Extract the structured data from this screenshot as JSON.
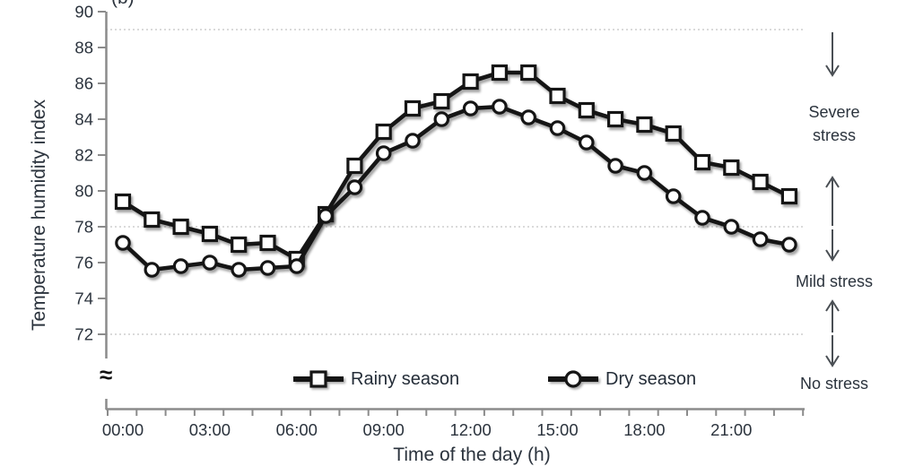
{
  "figure_label": "(b)",
  "axes": {
    "y_title": "Temperature humidity index",
    "x_title": "Time of the day (h)",
    "y_ticks": [
      90,
      88,
      86,
      84,
      82,
      80,
      78,
      76,
      74,
      72
    ],
    "x_tick_labels": [
      "00:00",
      "03:00",
      "06:00",
      "09:00",
      "12:00",
      "15:00",
      "18:00",
      "21:00"
    ],
    "axis_break_symbol": "≈"
  },
  "chart_data": {
    "type": "line",
    "title": "",
    "xlabel": "Time of the day (h)",
    "ylabel": "Temperature humidity index",
    "x": [
      "00:00",
      "01:00",
      "02:00",
      "03:00",
      "04:00",
      "05:00",
      "06:00",
      "07:00",
      "08:00",
      "09:00",
      "10:00",
      "11:00",
      "12:00",
      "13:00",
      "14:00",
      "15:00",
      "16:00",
      "17:00",
      "18:00",
      "19:00",
      "20:00",
      "21:00",
      "22:00",
      "23:00"
    ],
    "series": [
      {
        "name": "Rainy season",
        "marker": "square",
        "values": [
          79.4,
          78.4,
          78.0,
          77.6,
          77.0,
          77.1,
          76.2,
          78.7,
          81.4,
          83.3,
          84.6,
          85.0,
          86.1,
          86.6,
          86.6,
          85.3,
          84.5,
          84.0,
          83.7,
          83.2,
          81.6,
          81.3,
          80.5,
          79.7
        ]
      },
      {
        "name": "Dry season",
        "marker": "circle",
        "values": [
          77.1,
          75.6,
          75.8,
          76.0,
          75.6,
          75.7,
          75.8,
          78.6,
          80.2,
          82.1,
          82.8,
          84.0,
          84.6,
          84.7,
          84.1,
          83.5,
          82.7,
          81.4,
          81.0,
          79.7,
          78.5,
          78.0,
          77.3,
          77.0
        ]
      }
    ],
    "ylim": [
      72,
      90
    ],
    "y_axis_break_below": 72,
    "gridlines_y": [
      89,
      78,
      72
    ],
    "grid_style": "dotted horizontal",
    "legend_position": "inside-bottom"
  },
  "legend": {
    "items": [
      {
        "label": "Rainy season",
        "marker": "square"
      },
      {
        "label": "Dry season",
        "marker": "circle"
      }
    ]
  },
  "annotations": {
    "stress_zones": [
      {
        "label": "Severe stress",
        "upper_boundary": 89
      },
      {
        "label": "Mild stress",
        "upper_boundary": 78
      },
      {
        "label": "No stress",
        "upper_boundary": 72
      }
    ],
    "arrows": [
      {
        "direction": "down",
        "near_value": 89
      },
      {
        "direction": "up",
        "near_value": 78
      },
      {
        "direction": "down",
        "near_value": 78
      },
      {
        "direction": "up",
        "near_value": 72
      },
      {
        "direction": "down",
        "near_value": 72
      }
    ]
  },
  "colors": {
    "series_line": "#151515",
    "marker_fill": "#ffffff",
    "grid": "#c4c4c4",
    "axis": "#8b8b8b",
    "text": "#2b333d",
    "arrow": "#4a4f54"
  }
}
